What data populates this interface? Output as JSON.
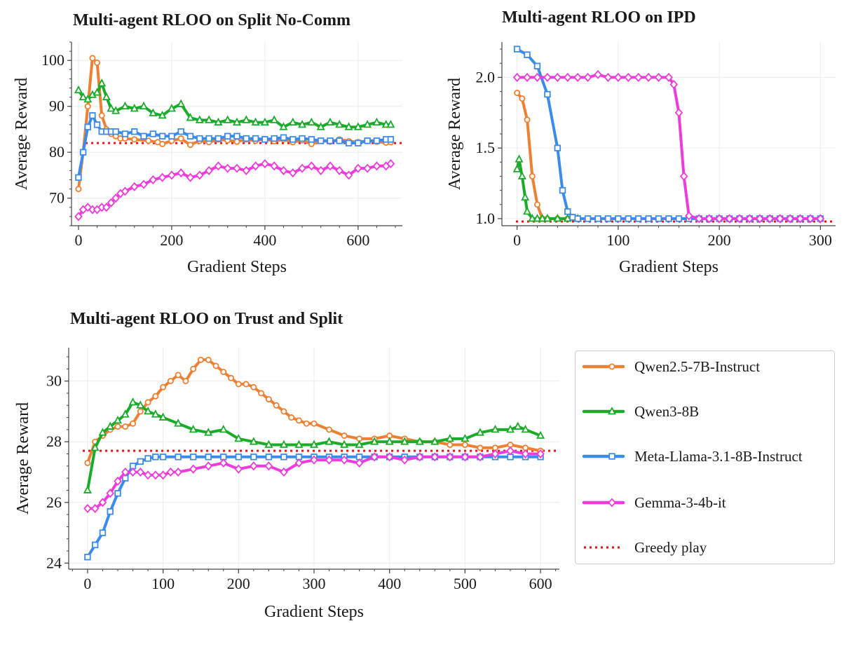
{
  "chart_data": [
    {
      "type": "line",
      "title": "Multi-agent RLOO on Split No-Comm",
      "xlabel": "Gradient Steps",
      "ylabel": "Average Reward",
      "xlim": [
        -15,
        695
      ],
      "ylim": [
        64,
        104
      ],
      "xticks": [
        0,
        200,
        400,
        600
      ],
      "yticks": [
        70,
        80,
        90,
        100
      ],
      "grid": true,
      "baseline": {
        "name": "Greedy play",
        "value": 82
      },
      "series": [
        {
          "name": "Qwen2.5-7B-Instruct",
          "color": "#ee8033",
          "marker": "circle",
          "x": [
            0,
            10,
            20,
            30,
            40,
            50,
            60,
            70,
            80,
            90,
            100,
            120,
            150,
            170,
            180,
            200,
            220,
            240,
            260,
            280,
            300,
            320,
            340,
            360,
            380,
            400,
            420,
            440,
            460,
            480,
            500,
            520,
            540,
            560,
            580,
            600,
            620,
            640,
            660,
            670
          ],
          "y": [
            72,
            80,
            90,
            100.5,
            99.5,
            88,
            85,
            84,
            83.5,
            83,
            83,
            82.8,
            82.5,
            82.2,
            81.8,
            82.5,
            83,
            81.6,
            82.5,
            82.2,
            82.8,
            82.6,
            82.3,
            82.8,
            82.5,
            82.9,
            82.4,
            82.8,
            82.2,
            82.6,
            81.8,
            82.5,
            82.3,
            82.8,
            82.4,
            82.2,
            82.5,
            82.3,
            82.1,
            82.2
          ]
        },
        {
          "name": "Qwen3-8B",
          "color": "#1aab2a",
          "marker": "triangle",
          "x": [
            0,
            10,
            20,
            30,
            40,
            50,
            60,
            70,
            80,
            100,
            120,
            140,
            160,
            180,
            200,
            220,
            240,
            260,
            280,
            300,
            320,
            340,
            360,
            380,
            400,
            420,
            440,
            460,
            480,
            500,
            520,
            540,
            560,
            580,
            600,
            620,
            640,
            660,
            670
          ],
          "y": [
            93.5,
            92,
            91.5,
            92.5,
            93,
            95,
            92,
            89.5,
            89,
            90,
            89.5,
            90,
            88.5,
            88,
            89.5,
            90.5,
            87.5,
            87,
            87,
            86.5,
            87,
            86.5,
            87,
            86.5,
            86.5,
            87,
            85.5,
            86.5,
            86,
            86.5,
            85.5,
            86.5,
            86,
            85.5,
            85.5,
            86,
            86.5,
            86,
            86
          ]
        },
        {
          "name": "Meta-Llama-3.1-8B-Instruct",
          "color": "#3b8bea",
          "marker": "square",
          "x": [
            0,
            10,
            20,
            30,
            40,
            50,
            60,
            70,
            80,
            100,
            120,
            140,
            160,
            180,
            200,
            220,
            240,
            260,
            280,
            300,
            320,
            340,
            360,
            380,
            400,
            420,
            440,
            460,
            480,
            500,
            520,
            540,
            560,
            580,
            600,
            620,
            640,
            660,
            670
          ],
          "y": [
            74.5,
            80,
            85.5,
            88,
            86,
            84.5,
            84.5,
            84.5,
            84.5,
            84,
            84.5,
            83.5,
            84,
            83.5,
            83.5,
            84.5,
            83.5,
            83,
            83,
            83,
            83.5,
            83.5,
            83,
            83,
            82.8,
            83,
            83.2,
            82.8,
            83,
            82.8,
            82.5,
            82.5,
            82.5,
            82,
            82,
            82.5,
            82.5,
            82.8,
            82.8
          ]
        },
        {
          "name": "Gemma-3-4b-it",
          "color": "#ee3bdb",
          "marker": "diamond",
          "x": [
            0,
            10,
            20,
            30,
            40,
            50,
            60,
            70,
            80,
            90,
            100,
            120,
            140,
            160,
            180,
            200,
            220,
            240,
            260,
            280,
            300,
            320,
            340,
            360,
            380,
            400,
            420,
            440,
            460,
            480,
            500,
            520,
            540,
            560,
            580,
            600,
            620,
            640,
            660,
            670
          ],
          "y": [
            66,
            67.5,
            68,
            67.5,
            67.5,
            68,
            68,
            69,
            70,
            71,
            71.5,
            72.5,
            73,
            74,
            74.5,
            75,
            75.5,
            74.5,
            75,
            76,
            77,
            76.5,
            76.5,
            76,
            77,
            77.5,
            77,
            76,
            75.5,
            76.5,
            77,
            76,
            77,
            76,
            75,
            76.5,
            76.5,
            77,
            77,
            77.5
          ]
        }
      ]
    },
    {
      "type": "line",
      "title": "Multi-agent RLOO on IPD",
      "xlabel": "Gradient Steps",
      "ylabel": "Average Reward",
      "xlim": [
        -15,
        315
      ],
      "ylim": [
        0.95,
        2.25
      ],
      "xticks": [
        0,
        100,
        200,
        300
      ],
      "yticks": [
        1.0,
        1.5,
        2.0
      ],
      "grid": true,
      "baseline": {
        "name": "Greedy play",
        "value": 0.98
      },
      "series": [
        {
          "name": "Qwen2.5-7B-Instruct",
          "color": "#ee8033",
          "marker": "circle",
          "x": [
            0,
            5,
            10,
            15,
            20,
            25,
            30,
            40,
            50,
            60
          ],
          "y": [
            1.89,
            1.85,
            1.7,
            1.3,
            1.1,
            1.0,
            1.0,
            1.0,
            1.0,
            1.0
          ]
        },
        {
          "name": "Qwen3-8B",
          "color": "#1aab2a",
          "marker": "triangle",
          "x": [
            0,
            2,
            5,
            8,
            10,
            15,
            20,
            25,
            30,
            40,
            50,
            60
          ],
          "y": [
            1.35,
            1.42,
            1.3,
            1.15,
            1.05,
            1.0,
            1.0,
            1.0,
            1.0,
            1.0,
            1.0,
            1.0
          ]
        },
        {
          "name": "Meta-Llama-3.1-8B-Instruct",
          "color": "#3b8bea",
          "marker": "square",
          "x": [
            0,
            10,
            20,
            30,
            40,
            45,
            50,
            55,
            60,
            70,
            80,
            90,
            100,
            110,
            120,
            130,
            140,
            150,
            160,
            170,
            180,
            190,
            200,
            210,
            220,
            230,
            240,
            250,
            260,
            270,
            280,
            290,
            300
          ],
          "y": [
            2.2,
            2.16,
            2.08,
            1.88,
            1.5,
            1.2,
            1.05,
            1.01,
            1.0,
            1.0,
            1.0,
            1.0,
            1.0,
            1.0,
            1.0,
            1.0,
            1.0,
            1.0,
            1.0,
            1.0,
            1.0,
            1.0,
            1.0,
            1.0,
            1.0,
            1.0,
            1.0,
            1.0,
            1.0,
            1.0,
            1.0,
            1.0,
            1.0
          ]
        },
        {
          "name": "Gemma-3-4b-it",
          "color": "#ee3bdb",
          "marker": "diamond",
          "x": [
            0,
            10,
            20,
            30,
            40,
            50,
            60,
            70,
            80,
            90,
            100,
            110,
            120,
            130,
            140,
            150,
            155,
            160,
            165,
            170,
            180,
            190,
            200,
            210,
            220,
            230,
            240,
            250,
            260,
            270,
            280,
            290,
            300
          ],
          "y": [
            2.0,
            2.0,
            2.0,
            2.0,
            2.0,
            2.0,
            2.0,
            2.0,
            2.02,
            2.0,
            2.0,
            2.0,
            2.0,
            2.0,
            2.0,
            2.0,
            1.95,
            1.75,
            1.3,
            1.02,
            1.0,
            1.0,
            1.0,
            1.0,
            1.0,
            1.0,
            1.0,
            1.0,
            1.0,
            1.0,
            1.0,
            1.0,
            1.0
          ]
        }
      ]
    },
    {
      "type": "line",
      "title": "Multi-agent RLOO on Trust and Split",
      "xlabel": "Gradient Steps",
      "ylabel": "Average Reward",
      "xlim": [
        -25,
        625
      ],
      "ylim": [
        23.8,
        31.1
      ],
      "xticks": [
        0,
        100,
        200,
        300,
        400,
        500,
        600
      ],
      "yticks": [
        24,
        26,
        28,
        30
      ],
      "grid": true,
      "baseline": {
        "name": "Greedy play",
        "value": 27.7
      },
      "series": [
        {
          "name": "Qwen2.5-7B-Instruct",
          "color": "#ee8033",
          "marker": "circle",
          "x": [
            0,
            10,
            20,
            30,
            40,
            50,
            60,
            70,
            80,
            90,
            100,
            110,
            120,
            130,
            140,
            150,
            160,
            170,
            180,
            190,
            200,
            210,
            220,
            230,
            240,
            250,
            260,
            270,
            280,
            290,
            300,
            320,
            340,
            360,
            380,
            400,
            420,
            440,
            460,
            480,
            500,
            520,
            540,
            560,
            580,
            600
          ],
          "y": [
            27.3,
            28.0,
            28.2,
            28.4,
            28.5,
            28.5,
            28.6,
            29.0,
            29.3,
            29.5,
            29.8,
            30.0,
            30.2,
            30.0,
            30.4,
            30.7,
            30.7,
            30.5,
            30.3,
            30.1,
            29.9,
            29.9,
            29.8,
            29.6,
            29.4,
            29.2,
            29.0,
            28.8,
            28.7,
            28.6,
            28.6,
            28.4,
            28.2,
            28.1,
            28.1,
            28.2,
            28.1,
            28.0,
            28.0,
            27.9,
            27.9,
            27.8,
            27.8,
            27.9,
            27.8,
            27.7
          ]
        },
        {
          "name": "Qwen3-8B",
          "color": "#1aab2a",
          "marker": "triangle",
          "x": [
            0,
            10,
            20,
            30,
            40,
            50,
            60,
            70,
            80,
            90,
            100,
            120,
            140,
            160,
            180,
            200,
            220,
            240,
            260,
            280,
            300,
            320,
            340,
            360,
            380,
            400,
            420,
            440,
            460,
            480,
            500,
            520,
            540,
            560,
            570,
            580,
            600
          ],
          "y": [
            26.4,
            27.8,
            28.3,
            28.5,
            28.7,
            28.9,
            29.3,
            29.2,
            29.0,
            28.9,
            28.8,
            28.6,
            28.4,
            28.3,
            28.4,
            28.1,
            28.0,
            27.9,
            27.9,
            27.9,
            27.9,
            28.0,
            27.9,
            27.9,
            28.0,
            28.0,
            28.0,
            28.0,
            28.0,
            28.1,
            28.1,
            28.3,
            28.4,
            28.4,
            28.5,
            28.4,
            28.2
          ]
        },
        {
          "name": "Meta-Llama-3.1-8B-Instruct",
          "color": "#3b8bea",
          "marker": "square",
          "x": [
            0,
            10,
            20,
            30,
            40,
            50,
            60,
            70,
            80,
            90,
            100,
            120,
            140,
            160,
            180,
            200,
            220,
            240,
            260,
            280,
            300,
            320,
            340,
            360,
            380,
            400,
            420,
            440,
            460,
            480,
            500,
            520,
            540,
            560,
            580,
            600
          ],
          "y": [
            24.2,
            24.6,
            25.0,
            25.7,
            26.3,
            26.8,
            27.2,
            27.35,
            27.45,
            27.5,
            27.5,
            27.5,
            27.5,
            27.5,
            27.5,
            27.5,
            27.5,
            27.5,
            27.5,
            27.5,
            27.5,
            27.5,
            27.5,
            27.5,
            27.5,
            27.5,
            27.5,
            27.5,
            27.5,
            27.5,
            27.5,
            27.5,
            27.5,
            27.5,
            27.5,
            27.5
          ]
        },
        {
          "name": "Gemma-3-4b-it",
          "color": "#ee3bdb",
          "marker": "diamond",
          "x": [
            0,
            10,
            20,
            30,
            40,
            50,
            60,
            70,
            80,
            90,
            100,
            110,
            120,
            140,
            160,
            180,
            200,
            220,
            240,
            260,
            280,
            300,
            320,
            340,
            360,
            380,
            400,
            420,
            440,
            460,
            480,
            500,
            520,
            540,
            560,
            580,
            600
          ],
          "y": [
            25.8,
            25.8,
            26.0,
            26.3,
            26.7,
            27.0,
            27.0,
            27.0,
            26.9,
            26.9,
            26.9,
            27.0,
            27.0,
            27.1,
            27.2,
            27.3,
            27.1,
            27.2,
            27.2,
            27.0,
            27.3,
            27.4,
            27.4,
            27.4,
            27.3,
            27.5,
            27.5,
            27.4,
            27.5,
            27.5,
            27.5,
            27.5,
            27.5,
            27.6,
            27.7,
            27.6,
            27.6
          ]
        }
      ]
    }
  ],
  "legend": {
    "items": [
      {
        "label": "Qwen2.5-7B-Instruct",
        "color": "#ee8033",
        "marker": "circle",
        "style": "solid"
      },
      {
        "label": "Qwen3-8B",
        "color": "#1aab2a",
        "marker": "triangle",
        "style": "solid"
      },
      {
        "label": "Meta-Llama-3.1-8B-Instruct",
        "color": "#3b8bea",
        "marker": "square",
        "style": "solid"
      },
      {
        "label": "Gemma-3-4b-it",
        "color": "#ee3bdb",
        "marker": "diamond",
        "style": "solid"
      },
      {
        "label": "Greedy play",
        "color": "#e8161b",
        "marker": "none",
        "style": "dotted"
      }
    ]
  }
}
